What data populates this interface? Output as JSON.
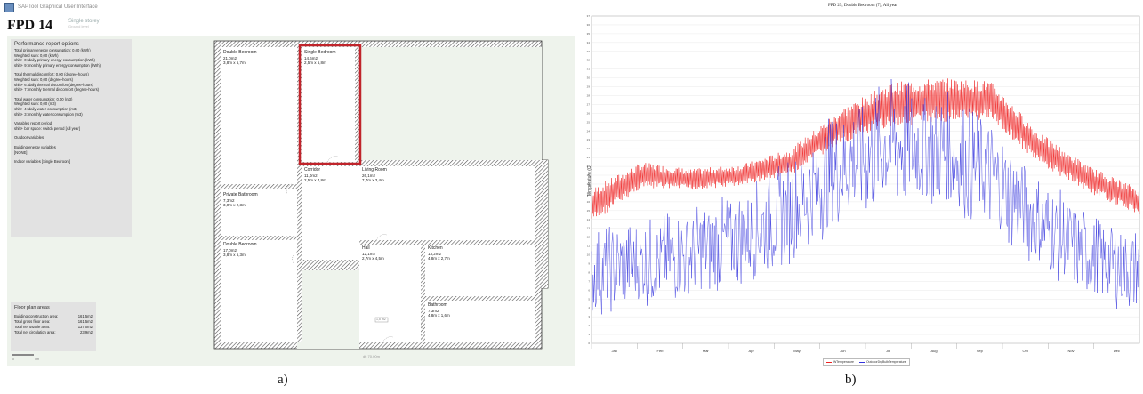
{
  "app": {
    "title": "SAPTool Graphical User Interface",
    "plan_title": "FPD 14",
    "storey": "Single storey",
    "storey_sub": "Ground level"
  },
  "performance_options": {
    "heading": "Performance report options",
    "lines": [
      "Total primary energy consumption: 0,00 (kWh)",
      "Weighted sum: 0,00 (kWh)",
      "shift+ 0: daily primary energy consumption (kWh)",
      "shift+ 9: monthly primary energy consumption (kWh)",
      "",
      "Total thermal discomfort: 0,00 (degree-hours)",
      "Weighted sum: 0,00 (degree-hours)",
      "shift+ 6: daily thermal discomfort (degree-hours)",
      "shift+ 7: monthly thermal discomfort (degree-hours)",
      "",
      "Total water consumption: 0,00 (m3)",
      "Weighted sum: 0,00 (m3)",
      "shift+ 4: daily water consumption (m3)",
      "shift+ 3: monthly water consumption (m3)",
      "",
      "Variables report period",
      "shift+ bar space: switch period [All year]",
      "",
      "Outdoor variables",
      "",
      "Building energy variables",
      "[NONE]",
      "",
      "Indoor variables [Single Bedroom]"
    ]
  },
  "floor_areas": {
    "heading": "Floor plan areas",
    "rows": [
      {
        "label": "Building construction area:",
        "value": "161,5m2"
      },
      {
        "label": "Total gross floor area:",
        "value": "161,5m2"
      },
      {
        "label": "Total net usable area:",
        "value": "137,0m2"
      },
      {
        "label": "Total net circulation area:",
        "value": "23,9m2"
      }
    ]
  },
  "scale_bar": {
    "start": "0",
    "end": "5m"
  },
  "rooms": {
    "double_bedroom_1": {
      "name": "Double Bedroom",
      "area": "21,0m2",
      "dims": "3,8m x 5,7m"
    },
    "single_bedroom": {
      "name": "Single Bedroom",
      "area": "14,6m2",
      "dims": "2,5m x 5,8m"
    },
    "corridor": {
      "name": "Corridor",
      "area": "11,0m2",
      "dims": "2,5m x 4,8m"
    },
    "living_room": {
      "name": "Living Room",
      "area": "26,1m2",
      "dims": "7,7m x 3,4m"
    },
    "private_bathroom": {
      "name": "Private Bathroom",
      "area": "7,3m2",
      "dims": "3,0m x 2,3m"
    },
    "double_bedroom_2": {
      "name": "Double Bedroom",
      "area": "17,0m2",
      "dims": "3,8m x 5,3m"
    },
    "hall": {
      "name": "Hall",
      "area": "12,1m2",
      "dims": "2,7m x 4,5m"
    },
    "kitchen": {
      "name": "Kitchen",
      "area": "13,2m2",
      "dims": "4,8m x 2,7m"
    },
    "bathroom": {
      "name": "Bathroom",
      "area": "7,3m2",
      "dims": "4,8m x 1,6m"
    },
    "entrance_tag": "1,5 m2"
  },
  "zoom": "dt: 70.00m",
  "captions": {
    "a": "a)",
    "b": "b)"
  },
  "colors": {
    "indoor": "#ee2222",
    "outdoor": "#3333dd",
    "wall": "#444444",
    "highlight": "#c0242b",
    "panel": "#e2e2e2",
    "canvas": "#eef3ec"
  },
  "chart_data": {
    "type": "line",
    "title": "FPD 25, Double Bedroom (7), All year",
    "ylabel": "Temperature (C)",
    "xlabel": "",
    "ylim": [
      0,
      37
    ],
    "y_ticks": [
      0,
      1,
      2,
      3,
      4,
      5,
      6,
      7,
      8,
      9,
      10,
      11,
      12,
      13,
      14,
      15,
      16,
      17,
      18,
      19,
      20,
      21,
      22,
      23,
      24,
      25,
      26,
      27,
      28,
      29,
      30,
      31,
      32,
      33,
      34,
      35,
      36,
      37
    ],
    "categories": [
      "Jan",
      "Feb",
      "Mar",
      "Apr",
      "May",
      "Jun",
      "Jul",
      "Aug",
      "Sep",
      "Oct",
      "Nov",
      "Dec"
    ],
    "grid": true,
    "legend_position": "bottom-center",
    "series": [
      {
        "name": "WTemperature",
        "color": "#ee2222",
        "values": [
          15.5,
          19.0,
          18.5,
          19.0,
          20.5,
          24.5,
          27.0,
          27.5,
          27.5,
          22.0,
          18.5,
          16.0
        ],
        "band": [
          2.0,
          1.5,
          1.2,
          1.2,
          1.5,
          2.0,
          2.5,
          2.5,
          2.2,
          1.8,
          1.5,
          1.5
        ]
      },
      {
        "name": "OutdoorDryBulbTemperature",
        "color": "#3333dd",
        "values": [
          8.0,
          9.0,
          10.0,
          12.0,
          15.0,
          20.0,
          22.5,
          22.0,
          19.0,
          13.5,
          10.0,
          8.0
        ],
        "band": [
          5.0,
          5.0,
          5.5,
          5.5,
          6.0,
          7.0,
          7.5,
          7.0,
          6.5,
          5.5,
          5.0,
          5.0
        ]
      }
    ]
  }
}
